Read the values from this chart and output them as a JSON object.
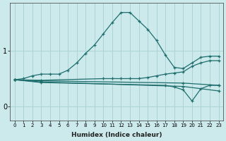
{
  "xlabel": "Humidex (Indice chaleur)",
  "ylabel": "",
  "xlim": [
    -0.5,
    23.5
  ],
  "ylim": [
    -0.25,
    1.85
  ],
  "yticks": [
    0,
    1
  ],
  "xticks": [
    0,
    1,
    2,
    3,
    4,
    5,
    6,
    7,
    8,
    9,
    10,
    11,
    12,
    13,
    14,
    15,
    16,
    17,
    18,
    19,
    20,
    21,
    22,
    23
  ],
  "background_color": "#cce9eb",
  "grid_color": "#a8cfd1",
  "line_color": "#1e6e6e",
  "lines": [
    {
      "x": [
        0,
        1,
        2,
        3,
        4,
        5,
        6,
        7,
        8,
        9,
        10,
        11,
        12,
        13,
        14,
        15,
        16,
        17,
        18,
        19,
        20,
        21,
        22,
        23
      ],
      "y": [
        0.48,
        0.5,
        0.55,
        0.58,
        0.58,
        0.58,
        0.65,
        0.78,
        0.95,
        1.1,
        1.3,
        1.5,
        1.68,
        1.68,
        1.53,
        1.38,
        1.18,
        0.92,
        0.7,
        0.68,
        0.78,
        0.88,
        0.9,
        0.9
      ]
    },
    {
      "x": [
        0,
        3,
        10,
        11,
        12,
        13,
        14,
        15,
        16,
        17,
        18,
        19,
        20,
        21,
        22,
        23
      ],
      "y": [
        0.48,
        0.47,
        0.5,
        0.5,
        0.5,
        0.5,
        0.5,
        0.52,
        0.55,
        0.58,
        0.6,
        0.62,
        0.72,
        0.78,
        0.82,
        0.82
      ]
    },
    {
      "x": [
        0,
        3,
        19,
        23
      ],
      "y": [
        0.48,
        0.46,
        0.42,
        0.38
      ]
    },
    {
      "x": [
        0,
        3,
        19,
        23
      ],
      "y": [
        0.48,
        0.44,
        0.36,
        0.28
      ]
    },
    {
      "x": [
        0,
        3,
        17,
        18,
        19,
        20,
        21,
        22,
        23
      ],
      "y": [
        0.48,
        0.43,
        0.38,
        0.35,
        0.3,
        0.1,
        0.32,
        0.38,
        0.38
      ]
    }
  ]
}
